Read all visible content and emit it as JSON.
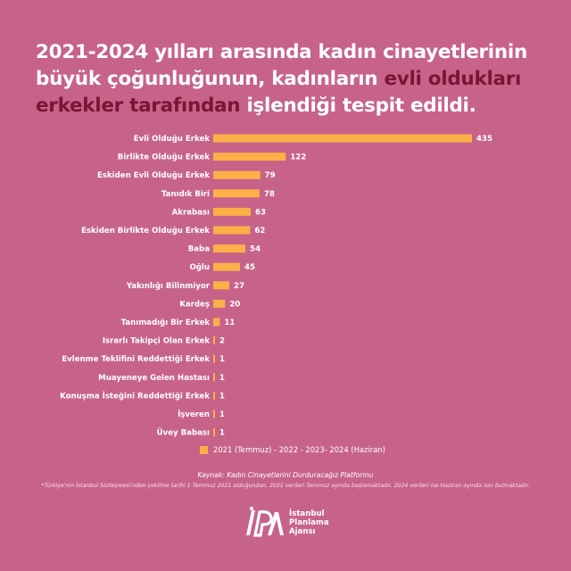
{
  "title": {
    "part1": "2021-2024 yılları arasında kadın cinayetlerinin büyük çoğunluğunun, kadınların ",
    "highlight": "evli oldukları erkekler tarafından",
    "part2": " işlendiği tespit edildi."
  },
  "chart_data": {
    "type": "bar",
    "orientation": "horizontal",
    "categories": [
      "Evli Olduğu Erkek",
      "Birlikte Olduğu Erkek",
      "Eskiden Evli Olduğu Erkek",
      "Tanıdık Biri",
      "Akrabası",
      "Eskiden Birlikte Olduğu Erkek",
      "Baba",
      "Oğlu",
      "Yakınlığı Bilinmiyor",
      "Kardeş",
      "Tanımadığı Bir Erkek",
      "Israrlı Takipçi Olan Erkek",
      "Evlenme Teklifini Reddettiği Erkek",
      "Muayeneye Gelen Hastası",
      "Konuşma İsteğini Reddettiği Erkek",
      "İşveren",
      "Üvey Babası"
    ],
    "values": [
      435,
      122,
      79,
      78,
      63,
      62,
      54,
      45,
      27,
      20,
      11,
      2,
      1,
      1,
      1,
      1,
      1
    ],
    "value_labels": [
      "435",
      "122",
      "79",
      "78",
      "63",
      "62",
      "54",
      "45",
      "27",
      "20",
      "11",
      "2",
      "1",
      "1",
      "1",
      "1",
      "1"
    ],
    "xlim": [
      0,
      435
    ],
    "legend": "2021 (Temmuz) - 2022 - 2023- 2024 (Haziran)",
    "bar_color": "#FBB048",
    "grid": false
  },
  "source": "Kaynak: Kadın Cinayetlerini Durduracağız Platformu",
  "note": "*Türkiye'nin İstanbul Sözleşmesi'nden çekilme tarihi 1 Temmuz 2021 olduğundan, 2021 verileri Temmuz ayında başlamaktadır. 2024 verileri ise Haziran ayında son bulmaktadır.",
  "logo": {
    "mark": "İPA",
    "line1": "İstanbul",
    "line2": "Planlama",
    "line3": "Ajansı"
  },
  "colors": {
    "background": "#C76389",
    "bar": "#FBB048",
    "highlight": "#7A1535"
  }
}
